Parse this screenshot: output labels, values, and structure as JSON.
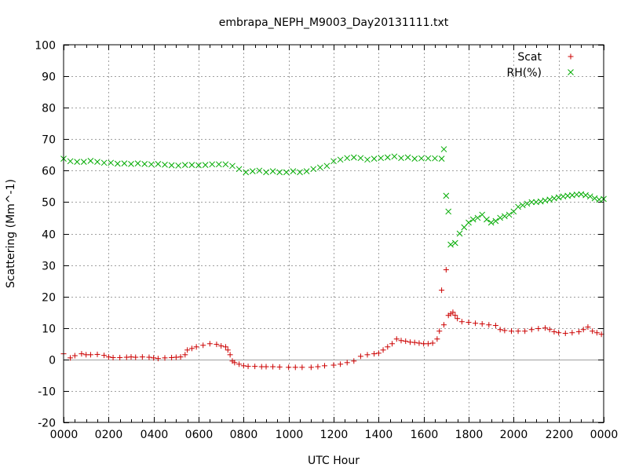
{
  "chart_data": {
    "type": "scatter",
    "title": "embrapa_NEPH_M9003_Day20131111.txt",
    "xlabel": "UTC Hour",
    "ylabel": "Scattering (Mm^-1)",
    "xlim": [
      0,
      24
    ],
    "ylim": [
      -20,
      100
    ],
    "x_ticks": [
      {
        "value": 0,
        "label": "0000"
      },
      {
        "value": 2,
        "label": "0200"
      },
      {
        "value": 4,
        "label": "0400"
      },
      {
        "value": 6,
        "label": "0600"
      },
      {
        "value": 8,
        "label": "0800"
      },
      {
        "value": 10,
        "label": "1000"
      },
      {
        "value": 12,
        "label": "1200"
      },
      {
        "value": 14,
        "label": "1400"
      },
      {
        "value": 16,
        "label": "1600"
      },
      {
        "value": 18,
        "label": "1800"
      },
      {
        "value": 20,
        "label": "2000"
      },
      {
        "value": 22,
        "label": "2200"
      },
      {
        "value": 24,
        "label": "0000"
      }
    ],
    "y_ticks": [
      {
        "value": -20,
        "label": "-20"
      },
      {
        "value": -10,
        "label": "-10"
      },
      {
        "value": 0,
        "label": "0"
      },
      {
        "value": 10,
        "label": "10"
      },
      {
        "value": 20,
        "label": "20"
      },
      {
        "value": 30,
        "label": "30"
      },
      {
        "value": 40,
        "label": "40"
      },
      {
        "value": 50,
        "label": "50"
      },
      {
        "value": 60,
        "label": "60"
      },
      {
        "value": 70,
        "label": "70"
      },
      {
        "value": 80,
        "label": "80"
      },
      {
        "value": 90,
        "label": "90"
      },
      {
        "value": 100,
        "label": "100"
      }
    ],
    "grid": true,
    "zero_line": true,
    "legend_position": "top-right",
    "series": [
      {
        "name": "Scat",
        "marker": "plus",
        "color": "#cc0000",
        "points": [
          [
            0.0,
            1.8
          ],
          [
            0.3,
            0.5
          ],
          [
            0.5,
            1.2
          ],
          [
            0.8,
            1.8
          ],
          [
            1.0,
            1.5
          ],
          [
            1.2,
            1.5
          ],
          [
            1.5,
            1.6
          ],
          [
            1.8,
            1.3
          ],
          [
            2.0,
            0.8
          ],
          [
            2.2,
            0.6
          ],
          [
            2.5,
            0.6
          ],
          [
            2.8,
            0.7
          ],
          [
            3.0,
            0.8
          ],
          [
            3.2,
            0.7
          ],
          [
            3.5,
            0.8
          ],
          [
            3.8,
            0.7
          ],
          [
            4.0,
            0.5
          ],
          [
            4.2,
            0.3
          ],
          [
            4.5,
            0.5
          ],
          [
            4.8,
            0.6
          ],
          [
            5.0,
            0.7
          ],
          [
            5.2,
            0.8
          ],
          [
            5.4,
            1.5
          ],
          [
            5.5,
            3.0
          ],
          [
            5.7,
            3.5
          ],
          [
            5.9,
            4.0
          ],
          [
            6.2,
            4.5
          ],
          [
            6.5,
            5.0
          ],
          [
            6.8,
            4.8
          ],
          [
            7.0,
            4.3
          ],
          [
            7.2,
            4.0
          ],
          [
            7.3,
            3.0
          ],
          [
            7.4,
            1.5
          ],
          [
            7.5,
            -0.5
          ],
          [
            7.6,
            -1.0
          ],
          [
            7.8,
            -1.5
          ],
          [
            8.0,
            -2.0
          ],
          [
            8.2,
            -2.2
          ],
          [
            8.5,
            -2.2
          ],
          [
            8.8,
            -2.3
          ],
          [
            9.0,
            -2.3
          ],
          [
            9.3,
            -2.3
          ],
          [
            9.6,
            -2.4
          ],
          [
            10.0,
            -2.5
          ],
          [
            10.3,
            -2.5
          ],
          [
            10.6,
            -2.5
          ],
          [
            11.0,
            -2.5
          ],
          [
            11.3,
            -2.3
          ],
          [
            11.6,
            -2.0
          ],
          [
            12.0,
            -1.8
          ],
          [
            12.3,
            -1.5
          ],
          [
            12.6,
            -1.0
          ],
          [
            12.9,
            -0.5
          ],
          [
            13.2,
            1.0
          ],
          [
            13.5,
            1.5
          ],
          [
            13.8,
            1.8
          ],
          [
            14.0,
            2.0
          ],
          [
            14.2,
            3.0
          ],
          [
            14.4,
            4.0
          ],
          [
            14.6,
            5.0
          ],
          [
            14.8,
            6.5
          ],
          [
            15.0,
            6.0
          ],
          [
            15.2,
            5.8
          ],
          [
            15.4,
            5.5
          ],
          [
            15.6,
            5.4
          ],
          [
            15.8,
            5.2
          ],
          [
            16.0,
            5.0
          ],
          [
            16.2,
            5.0
          ],
          [
            16.4,
            5.2
          ],
          [
            16.6,
            6.5
          ],
          [
            16.7,
            9.0
          ],
          [
            16.8,
            22.0
          ],
          [
            16.9,
            11.0
          ],
          [
            17.0,
            28.5
          ],
          [
            17.1,
            14.0
          ],
          [
            17.2,
            14.5
          ],
          [
            17.3,
            15.0
          ],
          [
            17.4,
            14.0
          ],
          [
            17.5,
            13.0
          ],
          [
            17.7,
            12.0
          ],
          [
            18.0,
            11.8
          ],
          [
            18.3,
            11.5
          ],
          [
            18.6,
            11.3
          ],
          [
            18.9,
            11.0
          ],
          [
            19.2,
            10.8
          ],
          [
            19.4,
            9.5
          ],
          [
            19.6,
            9.2
          ],
          [
            19.9,
            9.0
          ],
          [
            20.2,
            9.0
          ],
          [
            20.5,
            9.0
          ],
          [
            20.8,
            9.5
          ],
          [
            21.1,
            9.8
          ],
          [
            21.4,
            10.0
          ],
          [
            21.6,
            9.5
          ],
          [
            21.8,
            8.8
          ],
          [
            22.0,
            8.5
          ],
          [
            22.3,
            8.3
          ],
          [
            22.6,
            8.5
          ],
          [
            22.9,
            8.8
          ],
          [
            23.1,
            9.5
          ],
          [
            23.3,
            10.3
          ],
          [
            23.5,
            9.0
          ],
          [
            23.7,
            8.5
          ],
          [
            23.9,
            8.0
          ]
        ]
      },
      {
        "name": "RH(%)",
        "marker": "cross",
        "color": "#00aa00",
        "points": [
          [
            0.0,
            63.8
          ],
          [
            0.3,
            63.0
          ],
          [
            0.6,
            62.8
          ],
          [
            0.9,
            62.8
          ],
          [
            1.2,
            63.1
          ],
          [
            1.5,
            62.8
          ],
          [
            1.8,
            62.5
          ],
          [
            2.1,
            62.5
          ],
          [
            2.4,
            62.2
          ],
          [
            2.7,
            62.3
          ],
          [
            3.0,
            62.1
          ],
          [
            3.3,
            62.3
          ],
          [
            3.6,
            62.1
          ],
          [
            3.9,
            62.0
          ],
          [
            4.2,
            62.1
          ],
          [
            4.5,
            61.9
          ],
          [
            4.8,
            61.7
          ],
          [
            5.1,
            61.6
          ],
          [
            5.4,
            61.8
          ],
          [
            5.7,
            61.8
          ],
          [
            6.0,
            61.7
          ],
          [
            6.3,
            61.8
          ],
          [
            6.6,
            62.0
          ],
          [
            6.9,
            62.0
          ],
          [
            7.2,
            62.0
          ],
          [
            7.5,
            61.5
          ],
          [
            7.8,
            60.5
          ],
          [
            8.1,
            59.5
          ],
          [
            8.4,
            59.8
          ],
          [
            8.7,
            60.0
          ],
          [
            9.0,
            59.5
          ],
          [
            9.3,
            59.8
          ],
          [
            9.6,
            59.5
          ],
          [
            9.9,
            59.5
          ],
          [
            10.2,
            59.8
          ],
          [
            10.5,
            59.5
          ],
          [
            10.8,
            59.8
          ],
          [
            11.1,
            60.5
          ],
          [
            11.4,
            61.0
          ],
          [
            11.7,
            61.5
          ],
          [
            12.0,
            63.0
          ],
          [
            12.3,
            63.5
          ],
          [
            12.6,
            64.0
          ],
          [
            12.9,
            64.2
          ],
          [
            13.2,
            64.0
          ],
          [
            13.5,
            63.5
          ],
          [
            13.8,
            63.8
          ],
          [
            14.1,
            64.0
          ],
          [
            14.4,
            64.2
          ],
          [
            14.7,
            64.5
          ],
          [
            15.0,
            64.0
          ],
          [
            15.3,
            64.2
          ],
          [
            15.6,
            63.8
          ],
          [
            15.9,
            63.9
          ],
          [
            16.2,
            63.9
          ],
          [
            16.5,
            63.9
          ],
          [
            16.8,
            63.8
          ],
          [
            16.9,
            66.8
          ],
          [
            17.0,
            52.0
          ],
          [
            17.1,
            47.0
          ],
          [
            17.2,
            36.5
          ],
          [
            17.4,
            37.0
          ],
          [
            17.6,
            40.0
          ],
          [
            17.8,
            42.0
          ],
          [
            18.0,
            43.5
          ],
          [
            18.2,
            44.5
          ],
          [
            18.4,
            45.0
          ],
          [
            18.6,
            46.0
          ],
          [
            18.8,
            44.5
          ],
          [
            19.0,
            43.5
          ],
          [
            19.2,
            44.0
          ],
          [
            19.4,
            45.0
          ],
          [
            19.6,
            45.5
          ],
          [
            19.8,
            46.0
          ],
          [
            20.0,
            47.0
          ],
          [
            20.2,
            48.5
          ],
          [
            20.4,
            49.0
          ],
          [
            20.6,
            49.5
          ],
          [
            20.8,
            50.0
          ],
          [
            21.0,
            50.0
          ],
          [
            21.2,
            50.2
          ],
          [
            21.4,
            50.5
          ],
          [
            21.6,
            50.8
          ],
          [
            21.8,
            51.2
          ],
          [
            22.0,
            51.5
          ],
          [
            22.2,
            51.8
          ],
          [
            22.4,
            52.0
          ],
          [
            22.6,
            52.2
          ],
          [
            22.8,
            52.4
          ],
          [
            23.0,
            52.5
          ],
          [
            23.2,
            52.2
          ],
          [
            23.4,
            51.8
          ],
          [
            23.6,
            51.2
          ],
          [
            23.8,
            50.8
          ],
          [
            24.0,
            51.0
          ]
        ]
      }
    ]
  }
}
